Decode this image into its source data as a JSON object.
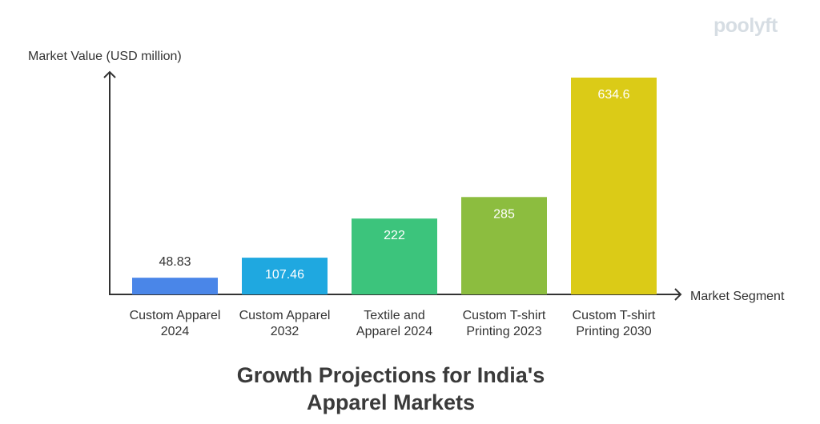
{
  "brand": {
    "logo_text": "poolyft"
  },
  "chart_data": {
    "type": "bar",
    "title": "Growth Projections for India's Apparel Markets",
    "title_lines": [
      "Growth Projections for India's",
      "Apparel Markets"
    ],
    "xlabel": "Market Segment",
    "ylabel": "Market Value (USD million)",
    "categories": [
      [
        "Custom Apparel",
        "2024"
      ],
      [
        "Custom Apparel",
        "2032"
      ],
      [
        "Textile and",
        "Apparel 2024"
      ],
      [
        "Custom T-shirt",
        "Printing 2023"
      ],
      [
        "Custom T-shirt",
        "Printing 2030"
      ]
    ],
    "values": [
      48.83,
      107.46,
      222,
      285,
      634.6
    ],
    "value_labels": [
      "48.83",
      "107.46",
      "222",
      "285",
      "634.6"
    ],
    "colors": [
      "#4a86e8",
      "#1fa8e0",
      "#3cc47c",
      "#8cbd3f",
      "#dbcb17"
    ],
    "label_colors": [
      "#333333",
      "#ffffff",
      "#ffffff",
      "#ffffff",
      "#ffffff"
    ],
    "ylim": [
      0,
      660
    ],
    "grid": false,
    "legend": "none"
  }
}
